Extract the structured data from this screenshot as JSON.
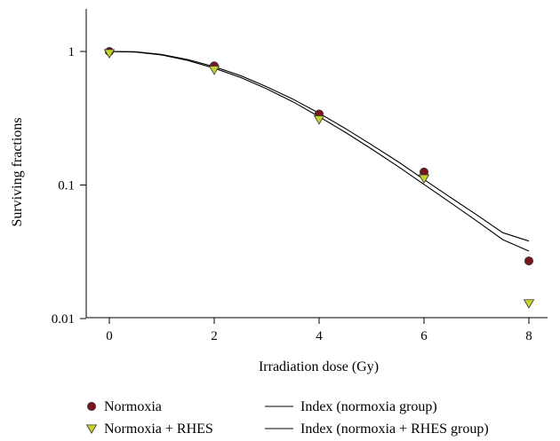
{
  "chart_data": {
    "type": "scatter",
    "xlabel": "Irradiation dose (Gy)",
    "ylabel": "Surviving fractions",
    "x_ticks": [
      "0",
      "2",
      "4",
      "6",
      "8"
    ],
    "y_ticks": [
      "0.01",
      "0.1",
      "1"
    ],
    "xlim": [
      0,
      8.5
    ],
    "ylim": [
      0.01,
      2.4
    ],
    "y_scale": "log",
    "grid": false,
    "legend_position": "bottom",
    "series": [
      {
        "name": "Normoxia",
        "marker": "circle",
        "color": "#7a1520",
        "x": [
          0,
          2,
          4,
          6,
          8
        ],
        "y": [
          1.0,
          0.78,
          0.34,
          0.125,
          0.027
        ]
      },
      {
        "name": "Normoxia + RHES",
        "marker": "triangle-down",
        "color": "#c7d22f",
        "x": [
          0,
          2,
          4,
          6,
          8
        ],
        "y": [
          0.97,
          0.73,
          0.31,
          0.112,
          0.013
        ]
      }
    ],
    "fits": [
      {
        "name": "Index (normoxia group)",
        "x": [
          0,
          0.5,
          1,
          1.5,
          2,
          2.5,
          3,
          3.5,
          4,
          4.5,
          5,
          5.5,
          6,
          6.5,
          7,
          7.5,
          8
        ],
        "y": [
          1.0,
          0.995,
          0.95,
          0.87,
          0.77,
          0.66,
          0.545,
          0.44,
          0.345,
          0.265,
          0.2,
          0.15,
          0.11,
          0.081,
          0.06,
          0.044,
          0.038
        ]
      },
      {
        "name": "Index (normoxia + RHES group)",
        "x": [
          0,
          0.5,
          1,
          1.5,
          2,
          2.5,
          3,
          3.5,
          4,
          4.5,
          5,
          5.5,
          6,
          6.5,
          7,
          7.5,
          8
        ],
        "y": [
          1.0,
          0.99,
          0.94,
          0.855,
          0.75,
          0.64,
          0.525,
          0.42,
          0.325,
          0.248,
          0.186,
          0.138,
          0.101,
          0.074,
          0.054,
          0.039,
          0.032
        ]
      }
    ]
  },
  "colors": {
    "circle_fill": "#7a1520",
    "triangle_fill": "#c7d22f"
  }
}
